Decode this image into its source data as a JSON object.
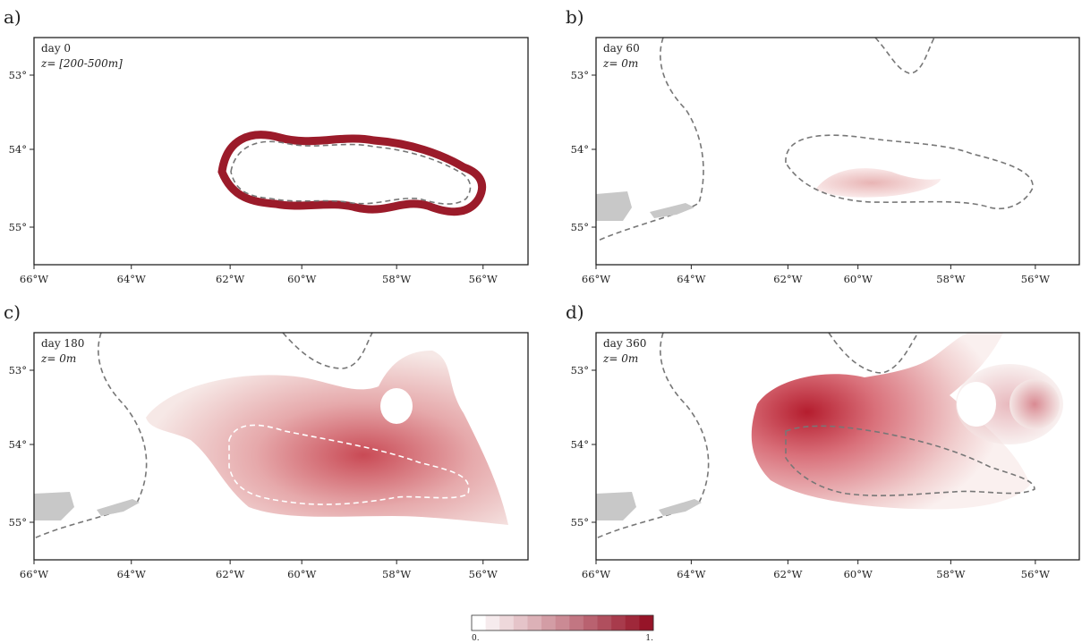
{
  "panels": [
    {
      "letter": "a)",
      "day": "day 0",
      "depth": "z= [200-500m]"
    },
    {
      "letter": "b)",
      "day": "day 60",
      "depth": "z= 0m"
    },
    {
      "letter": "c)",
      "day": "day 180",
      "depth": "z= 0m"
    },
    {
      "letter": "d)",
      "day": "day 360",
      "depth": "z= 0m"
    }
  ],
  "x_axis_labels": [
    "66°W",
    "64°W",
    "62°W",
    "60°W",
    "58°W",
    "56°W"
  ],
  "y_axis_labels": [
    "53°",
    "54°",
    "55°"
  ],
  "colorbar": {
    "min_label": "0.",
    "max_label": "1."
  }
}
